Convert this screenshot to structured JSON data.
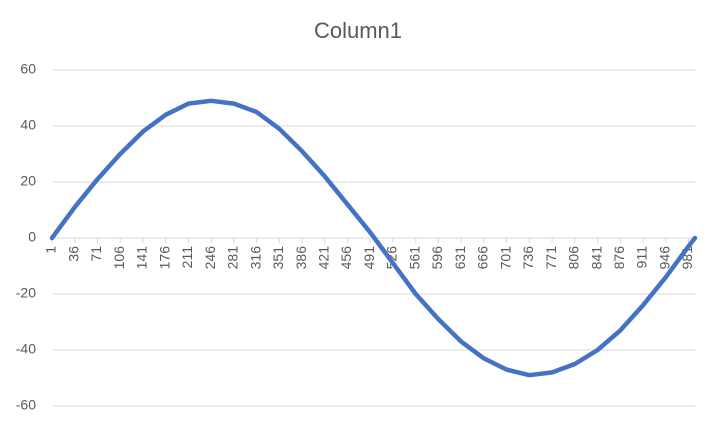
{
  "chart_data": {
    "type": "line",
    "title": "Column1",
    "x": [
      1,
      36,
      71,
      106,
      141,
      176,
      211,
      246,
      281,
      316,
      351,
      386,
      421,
      456,
      491,
      526,
      561,
      596,
      631,
      666,
      701,
      736,
      771,
      806,
      841,
      876,
      911,
      946,
      981,
      991
    ],
    "values": [
      0,
      11,
      21,
      30,
      38,
      44,
      48,
      49,
      48,
      45,
      39,
      31,
      22,
      12,
      2,
      -9,
      -20,
      -29,
      -37,
      -43,
      -47,
      -49,
      -48,
      -45,
      -40,
      -33,
      -24,
      -14,
      -3,
      0
    ],
    "color": "#4472c4",
    "xlim": [
      1,
      991
    ],
    "xticks": [
      1,
      36,
      71,
      106,
      141,
      176,
      211,
      246,
      281,
      316,
      351,
      386,
      421,
      456,
      491,
      526,
      561,
      596,
      631,
      666,
      701,
      736,
      771,
      806,
      841,
      876,
      911,
      946,
      981
    ],
    "ylim": [
      -60,
      60
    ],
    "yticks": [
      -60,
      -40,
      -20,
      0,
      20,
      40,
      60
    ],
    "grid": true
  }
}
